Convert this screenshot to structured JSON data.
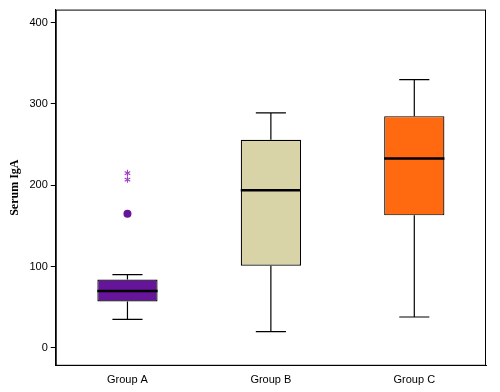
{
  "chart_data": {
    "type": "box",
    "y_label": "Serum IgA",
    "categories": [
      "Group A",
      "Group B",
      "Group C"
    ],
    "boxes": [
      {
        "min": 35,
        "q1": 57,
        "median": 70,
        "q3": 84,
        "max": 90,
        "outliers": [
          165
        ],
        "extremes": [
          207,
          215
        ]
      },
      {
        "min": 20,
        "q1": 101,
        "median": 194,
        "q3": 256,
        "max": 289,
        "outliers": [],
        "extremes": []
      },
      {
        "min": 38,
        "q1": 163,
        "median": 233,
        "q3": 285,
        "max": 330,
        "outliers": [],
        "extremes": []
      }
    ],
    "colors": [
      "#66149a",
      "#d9d4a8",
      "#ff6a10"
    ],
    "ylim": [
      -22,
      416
    ],
    "yticks": [
      0,
      100,
      200,
      300,
      400
    ],
    "grid": false
  }
}
